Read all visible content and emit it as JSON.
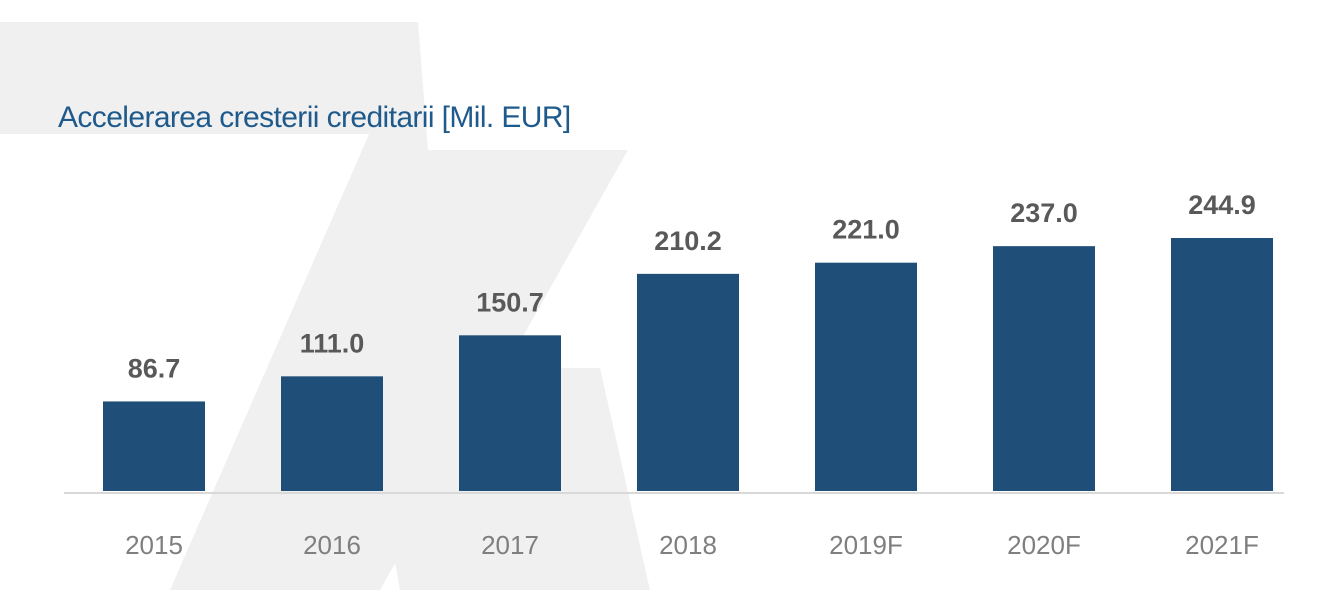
{
  "colors": {
    "bar": "#1f4e79",
    "title": "#1f5a8c",
    "value_label": "#595959",
    "tick_label": "#7f7f7f",
    "baseline": "#d9d9d9",
    "watermark": "#f0f0f0"
  },
  "chart_data": {
    "type": "bar",
    "title": "Accelerarea cresterii creditarii [Mil. EUR]",
    "xlabel": "",
    "ylabel": "",
    "categories": [
      "2015",
      "2016",
      "2017",
      "2018",
      "2019F",
      "2020F",
      "2021F"
    ],
    "values": [
      86.7,
      111.0,
      150.7,
      210.2,
      221.0,
      237.0,
      244.9
    ],
    "value_labels": [
      "86.7",
      "111.0",
      "150.7",
      "210.2",
      "221.0",
      "237.0",
      "244.9"
    ],
    "ylim": [
      0,
      244.9
    ],
    "grid": false,
    "legend": "none",
    "data_labels": true
  }
}
